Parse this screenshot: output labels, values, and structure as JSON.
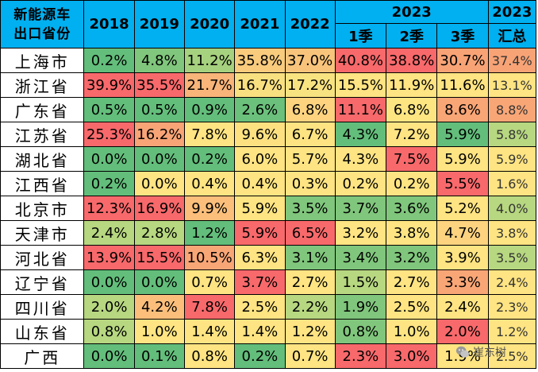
{
  "header": {
    "corner_line1": "新能源车",
    "corner_line2": "出口省份",
    "years": [
      "2018",
      "2019",
      "2020",
      "2021",
      "2022"
    ],
    "year_2023": "2023",
    "quarters": [
      "1季",
      "2季",
      "3季"
    ],
    "total_year": "2023",
    "total_label": "汇总"
  },
  "rows": [
    {
      "province": "上海市",
      "values": [
        "0.2%",
        "4.8%",
        "11.2%",
        "35.8%",
        "37.0%",
        "40.8%",
        "38.8%",
        "30.7%",
        "37.4%"
      ],
      "colors": [
        "#63be7b",
        "#80c67c",
        "#a6d17e",
        "#f8cb7d",
        "#f8c47b",
        "#f8696b",
        "#f8696b",
        "#f8a376",
        "#f8a376"
      ]
    },
    {
      "province": "浙江省",
      "values": [
        "39.9%",
        "35.5%",
        "21.7%",
        "16.7%",
        "17.2%",
        "15.5%",
        "11.9%",
        "11.6%",
        "13.1%"
      ],
      "colors": [
        "#f8696b",
        "#f8696b",
        "#f8b479",
        "#f8e081",
        "#f8e381",
        "#fee482",
        "#fee482",
        "#fee482",
        "#fee482"
      ]
    },
    {
      "province": "广东省",
      "values": [
        "0.5%",
        "0.5%",
        "0.9%",
        "2.6%",
        "6.8%",
        "11.1%",
        "6.8%",
        "8.6%",
        "8.8%"
      ],
      "colors": [
        "#63be7b",
        "#63be7b",
        "#63be7b",
        "#6bc07b",
        "#fdd37f",
        "#f8696b",
        "#fde582",
        "#f9a676",
        "#f9a676"
      ]
    },
    {
      "province": "江苏省",
      "values": [
        "25.3%",
        "16.2%",
        "7.8%",
        "9.6%",
        "6.7%",
        "4.3%",
        "7.2%",
        "5.9%",
        "5.8%"
      ],
      "colors": [
        "#f8696b",
        "#f8a476",
        "#fee482",
        "#fde181",
        "#fee382",
        "#63be7b",
        "#fee482",
        "#63be7b",
        "#b7d780"
      ]
    },
    {
      "province": "湖北省",
      "values": [
        "0.0%",
        "0.0%",
        "0.2%",
        "6.0%",
        "5.7%",
        "4.3%",
        "7.5%",
        "5.9%",
        "5.9%"
      ],
      "colors": [
        "#63be7b",
        "#63be7b",
        "#63be7b",
        "#fee482",
        "#fee482",
        "#fee482",
        "#f8696b",
        "#fee482",
        "#fee482"
      ]
    },
    {
      "province": "江西省",
      "values": [
        "0.2%",
        "0.0%",
        "0.4%",
        "0.4%",
        "0.3%",
        "0.2%",
        "0.2%",
        "5.5%",
        "1.6%"
      ],
      "colors": [
        "#63be7b",
        "#fee482",
        "#fee482",
        "#fee482",
        "#fee482",
        "#fee482",
        "#fee482",
        "#f8696b",
        "#fee482"
      ]
    },
    {
      "province": "北京市",
      "values": [
        "12.3%",
        "16.9%",
        "9.9%",
        "5.9%",
        "3.5%",
        "3.7%",
        "3.6%",
        "5.2%",
        "4.0%"
      ],
      "colors": [
        "#f8696b",
        "#f8696b",
        "#fbbf7b",
        "#fee482",
        "#80c67c",
        "#80c67c",
        "#80c67c",
        "#fee482",
        "#b7d780"
      ]
    },
    {
      "province": "天津市",
      "values": [
        "2.4%",
        "2.8%",
        "1.2%",
        "5.9%",
        "6.5%",
        "3.2%",
        "3.8%",
        "4.7%",
        "3.8%"
      ],
      "colors": [
        "#b7d780",
        "#b7d780",
        "#63be7b",
        "#f8696b",
        "#f8696b",
        "#fee482",
        "#fee482",
        "#fdd37f",
        "#fee482"
      ]
    },
    {
      "province": "河北省",
      "values": [
        "13.9%",
        "15.5%",
        "10.5%",
        "6.3%",
        "3.1%",
        "3.4%",
        "3.2%",
        "3.9%",
        "3.5%"
      ],
      "colors": [
        "#f8696b",
        "#f8696b",
        "#f9a676",
        "#fee482",
        "#80c67c",
        "#80c67c",
        "#80c67c",
        "#fee482",
        "#b7d780"
      ]
    },
    {
      "province": "辽宁省",
      "values": [
        "0.0%",
        "0.0%",
        "0.7%",
        "3.7%",
        "2.7%",
        "1.5%",
        "2.7%",
        "3.3%",
        "2.4%"
      ],
      "colors": [
        "#63be7b",
        "#63be7b",
        "#fee482",
        "#f8696b",
        "#fee482",
        "#b7d780",
        "#fee482",
        "#f9a676",
        "#fee482"
      ]
    },
    {
      "province": "四川省",
      "values": [
        "2.0%",
        "4.2%",
        "7.8%",
        "2.5%",
        "2.2%",
        "1.9%",
        "2.5%",
        "2.4%",
        "2.3%"
      ],
      "colors": [
        "#b7d780",
        "#fbbf7b",
        "#f8696b",
        "#fee482",
        "#b7d780",
        "#80c67c",
        "#fee482",
        "#fee482",
        "#fee482"
      ]
    },
    {
      "province": "山东省",
      "values": [
        "0.8%",
        "1.0%",
        "1.4%",
        "1.4%",
        "1.2%",
        "0.8%",
        "1.0%",
        "2.0%",
        "1.2%"
      ],
      "colors": [
        "#b7d780",
        "#fee482",
        "#fee482",
        "#fee482",
        "#fee482",
        "#80c67c",
        "#fee482",
        "#f8696b",
        "#fee482"
      ]
    },
    {
      "province": "广西",
      "values": [
        "0.0%",
        "0.1%",
        "0.8%",
        "0.2%",
        "0.7%",
        "2.3%",
        "3.0%",
        "1.9%",
        "2.5%"
      ],
      "colors": [
        "#63be7b",
        "#63be7b",
        "#fee482",
        "#63be7b",
        "#fee482",
        "#f8696b",
        "#f8696b",
        "#fee482",
        "#fee482"
      ]
    }
  ],
  "watermark": {
    "text": "崔东树",
    "icon": "wechat-icon"
  },
  "colors": {
    "header_bg": "#00b0f0",
    "border": "#000000"
  }
}
